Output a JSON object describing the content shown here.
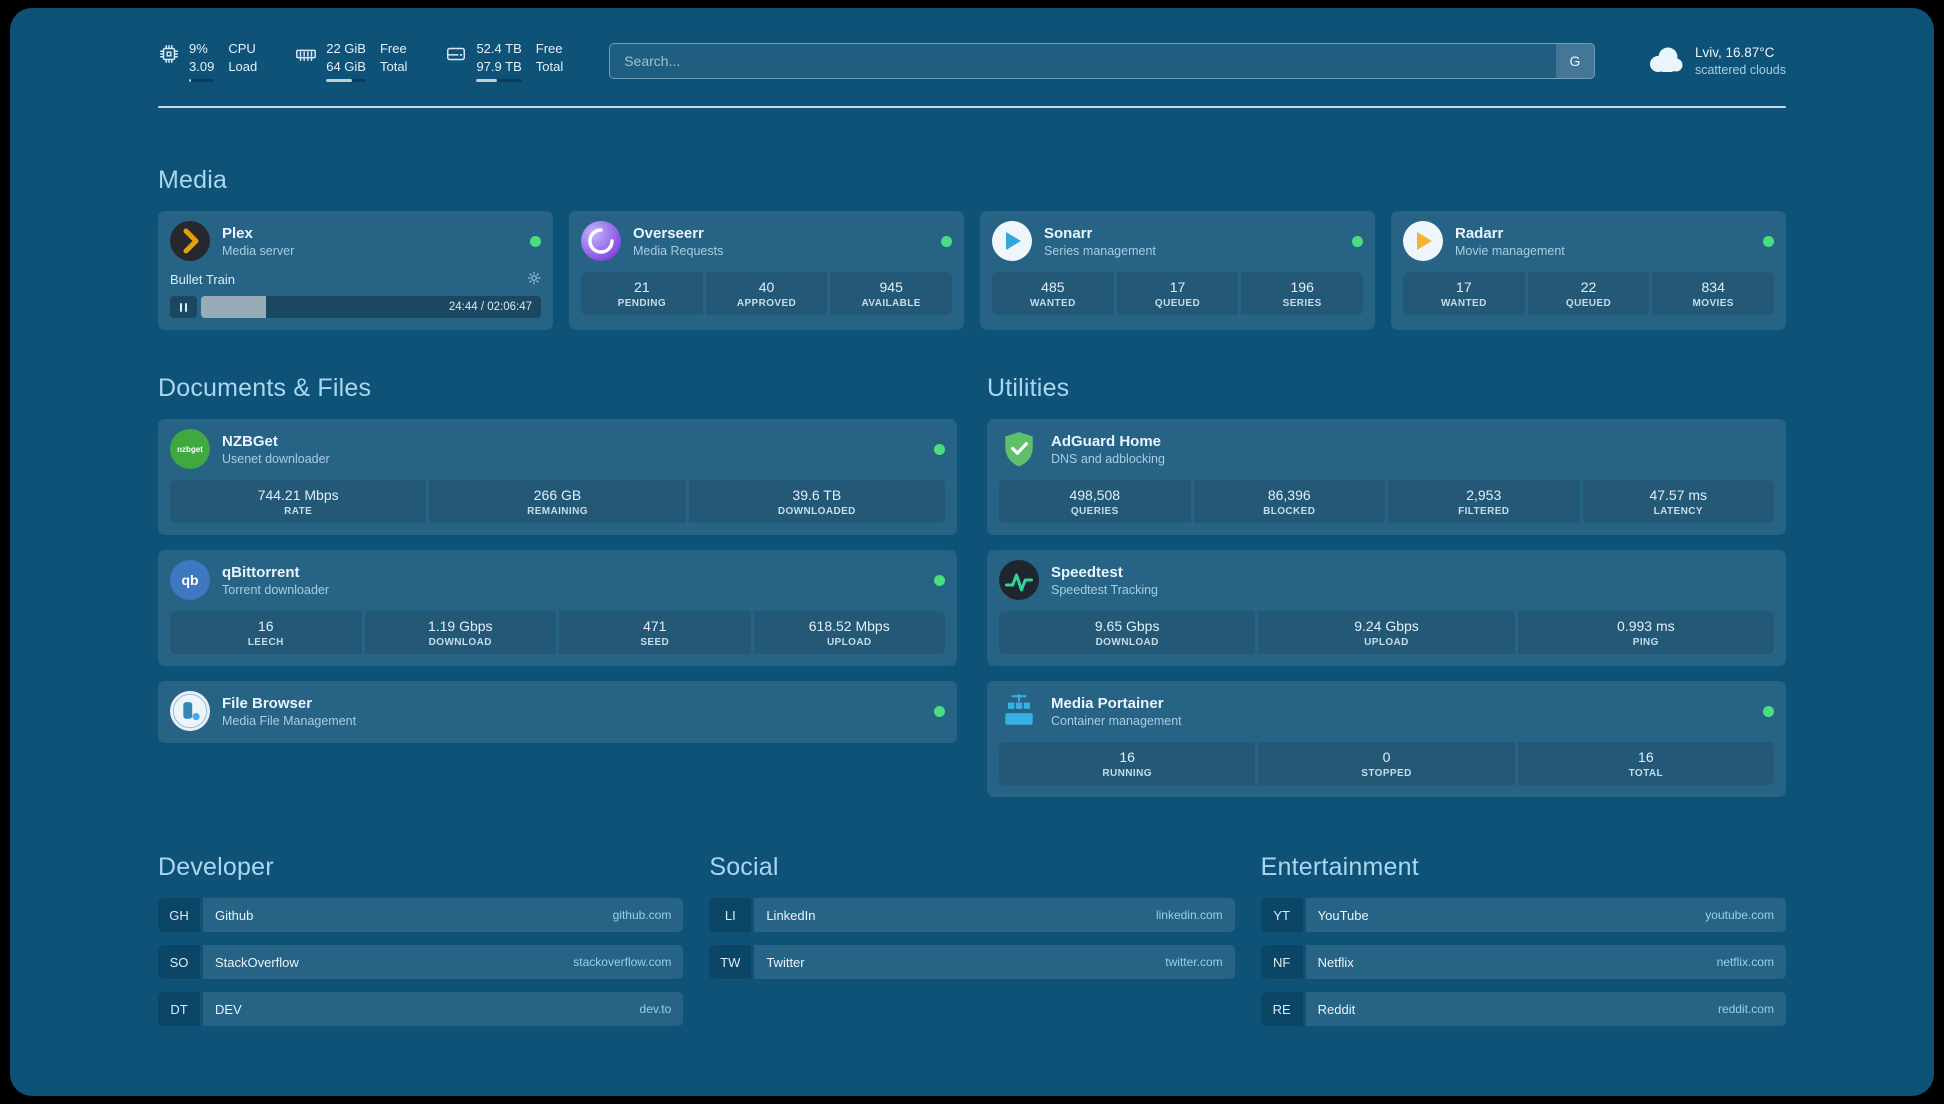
{
  "colors": {
    "background": "#0f5278",
    "card": "#276386",
    "heading": "#aad7f0",
    "link_text": "#8ed2f2",
    "status_online": "#4ade80",
    "plex_accent": "#e5a00d"
  },
  "header": {
    "resources": [
      {
        "icon": "cpu-icon",
        "rows": [
          [
            "9%",
            "CPU"
          ],
          [
            "3.09",
            "Load"
          ]
        ],
        "progress": 9
      },
      {
        "icon": "memory-icon",
        "rows": [
          [
            "22 GiB",
            "Free"
          ],
          [
            "64 GiB",
            "Total"
          ]
        ],
        "progress": 66
      },
      {
        "icon": "disk-icon",
        "rows": [
          [
            "52.4 TB",
            "Free"
          ],
          [
            "97.9 TB",
            "Total"
          ]
        ],
        "progress": 46
      }
    ],
    "search": {
      "placeholder": "Search...",
      "button_label": "G"
    },
    "weather": {
      "icon": "cloud-icon",
      "location": "Lviv, 16.87°C",
      "condition": "scattered clouds"
    }
  },
  "media": {
    "heading": "Media",
    "plex": {
      "title": "Plex",
      "subtitle": "Media server",
      "status": "online",
      "now_playing": "Bullet Train",
      "time": "24:44 / 02:06:47",
      "progress_pct": 19
    },
    "overseerr": {
      "title": "Overseerr",
      "subtitle": "Media Requests",
      "status": "online",
      "stats": [
        {
          "value": "21",
          "label": "PENDING"
        },
        {
          "value": "40",
          "label": "APPROVED"
        },
        {
          "value": "945",
          "label": "AVAILABLE"
        }
      ]
    },
    "sonarr": {
      "title": "Sonarr",
      "subtitle": "Series management",
      "status": "online",
      "stats": [
        {
          "value": "485",
          "label": "WANTED"
        },
        {
          "value": "17",
          "label": "QUEUED"
        },
        {
          "value": "196",
          "label": "SERIES"
        }
      ]
    },
    "radarr": {
      "title": "Radarr",
      "subtitle": "Movie management",
      "status": "online",
      "stats": [
        {
          "value": "17",
          "label": "WANTED"
        },
        {
          "value": "22",
          "label": "QUEUED"
        },
        {
          "value": "834",
          "label": "MOVIES"
        }
      ]
    }
  },
  "documents": {
    "heading": "Documents & Files",
    "nzbget": {
      "title": "NZBGet",
      "subtitle": "Usenet downloader",
      "status": "online",
      "icon_text": "nzbget",
      "stats": [
        {
          "value": "744.21 Mbps",
          "label": "RATE"
        },
        {
          "value": "266 GB",
          "label": "REMAINING"
        },
        {
          "value": "39.6 TB",
          "label": "DOWNLOADED"
        }
      ]
    },
    "qbittorrent": {
      "title": "qBittorrent",
      "subtitle": "Torrent downloader",
      "status": "online",
      "icon_text": "qb",
      "stats": [
        {
          "value": "16",
          "label": "LEECH"
        },
        {
          "value": "1.19 Gbps",
          "label": "DOWNLOAD"
        },
        {
          "value": "471",
          "label": "SEED"
        },
        {
          "value": "618.52 Mbps",
          "label": "UPLOAD"
        }
      ]
    },
    "filebrowser": {
      "title": "File Browser",
      "subtitle": "Media File Management",
      "status": "online"
    }
  },
  "utilities": {
    "heading": "Utilities",
    "adguard": {
      "title": "AdGuard Home",
      "subtitle": "DNS and adblocking",
      "stats": [
        {
          "value": "498,508",
          "label": "QUERIES"
        },
        {
          "value": "86,396",
          "label": "BLOCKED"
        },
        {
          "value": "2,953",
          "label": "FILTERED"
        },
        {
          "value": "47.57 ms",
          "label": "LATENCY"
        }
      ]
    },
    "speedtest": {
      "title": "Speedtest",
      "subtitle": "Speedtest Tracking",
      "stats": [
        {
          "value": "9.65 Gbps",
          "label": "DOWNLOAD"
        },
        {
          "value": "9.24 Gbps",
          "label": "UPLOAD"
        },
        {
          "value": "0.993 ms",
          "label": "PING"
        }
      ]
    },
    "portainer": {
      "title": "Media Portainer",
      "subtitle": "Container management",
      "status": "online",
      "stats": [
        {
          "value": "16",
          "label": "RUNNING"
        },
        {
          "value": "0",
          "label": "STOPPED"
        },
        {
          "value": "16",
          "label": "TOTAL"
        }
      ]
    }
  },
  "bookmarks": {
    "developer": {
      "heading": "Developer",
      "items": [
        {
          "abbr": "GH",
          "name": "Github",
          "domain": "github.com"
        },
        {
          "abbr": "SO",
          "name": "StackOverflow",
          "domain": "stackoverflow.com"
        },
        {
          "abbr": "DT",
          "name": "DEV",
          "domain": "dev.to"
        }
      ]
    },
    "social": {
      "heading": "Social",
      "items": [
        {
          "abbr": "LI",
          "name": "LinkedIn",
          "domain": "linkedin.com"
        },
        {
          "abbr": "TW",
          "name": "Twitter",
          "domain": "twitter.com"
        }
      ]
    },
    "entertainment": {
      "heading": "Entertainment",
      "items": [
        {
          "abbr": "YT",
          "name": "YouTube",
          "domain": "youtube.com"
        },
        {
          "abbr": "NF",
          "name": "Netflix",
          "domain": "netflix.com"
        },
        {
          "abbr": "RE",
          "name": "Reddit",
          "domain": "reddit.com"
        }
      ]
    }
  }
}
